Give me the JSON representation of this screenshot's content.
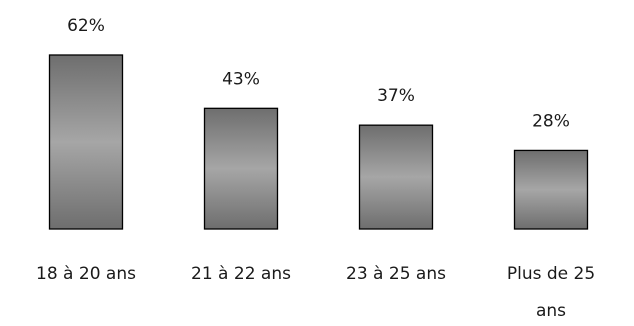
{
  "chart_data": {
    "type": "bar",
    "categories": [
      "18 à 20 ans",
      "21 à 22 ans",
      "23 à 25 ans",
      "Plus de 25 ans"
    ],
    "category_lines": [
      [
        "18 à 20 ans"
      ],
      [
        "21 à 22 ans"
      ],
      [
        "23 à 25 ans"
      ],
      [
        "Plus de 25",
        "ans"
      ]
    ],
    "values": [
      62,
      43,
      37,
      28
    ],
    "data_labels": [
      "62%",
      "43%",
      "37%",
      "28%"
    ],
    "title": "",
    "xlabel": "",
    "ylabel": "",
    "ylim": [
      0,
      62
    ],
    "grid": false,
    "legend": "none",
    "bar_color": "#8a8a8a",
    "bar_edge_color": "#000000"
  }
}
